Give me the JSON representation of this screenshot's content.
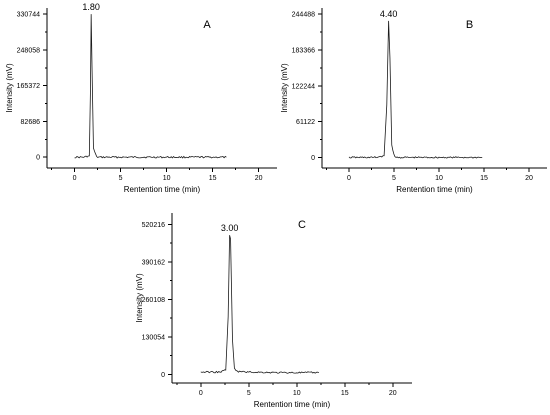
{
  "chart_data": [
    {
      "type": "line",
      "panel_label": "A",
      "peak_label": "1.80",
      "xlabel": "Rentention time (min)",
      "ylabel": "Intensity (mV)",
      "xlim": [
        -3,
        22
      ],
      "ylim": [
        -25000,
        345000
      ],
      "x_ticks": [
        0,
        5,
        10,
        15,
        20
      ],
      "y_ticks": [
        0,
        82686,
        165372,
        248058,
        330744
      ],
      "series": [
        {
          "x": [
            0,
            1.0,
            1.6,
            1.72,
            1.8,
            1.9,
            2.05,
            2.4,
            3,
            5,
            8,
            11,
            14,
            16.5
          ],
          "y": [
            0,
            0,
            3000,
            150000,
            330744,
            200000,
            20000,
            0,
            0,
            0,
            0,
            0,
            0,
            0
          ]
        }
      ],
      "grid": false
    },
    {
      "type": "line",
      "panel_label": "B",
      "peak_label": "4.40",
      "xlabel": "Rentention time (min)",
      "ylabel": "Intensity (mV)",
      "xlim": [
        -3,
        22
      ],
      "ylim": [
        -18000,
        255000
      ],
      "x_ticks": [
        0,
        5,
        10,
        15,
        20
      ],
      "y_ticks": [
        0,
        61122,
        122244,
        183366,
        244488
      ],
      "series": [
        {
          "x": [
            0,
            3,
            3.9,
            4.2,
            4.4,
            4.55,
            4.75,
            5.1,
            7,
            10,
            13,
            14.8
          ],
          "y": [
            0,
            0,
            3000,
            90000,
            233000,
            170000,
            20000,
            0,
            0,
            0,
            0,
            0
          ]
        }
      ],
      "grid": false
    },
    {
      "type": "line",
      "panel_label": "C",
      "peak_label": "3.00",
      "xlabel": "Rentention time (min)",
      "ylabel": "Intensity (mV)",
      "xlim": [
        -3,
        22
      ],
      "ylim": [
        -30000,
        560000
      ],
      "x_ticks": [
        0,
        5,
        10,
        15,
        20
      ],
      "y_ticks": [
        0,
        130054,
        260108,
        390162,
        520216
      ],
      "series": [
        {
          "x": [
            0,
            2.0,
            2.6,
            2.85,
            3.0,
            3.1,
            3.3,
            3.5,
            3.8,
            5,
            8,
            10,
            12.3
          ],
          "y": [
            8000,
            8000,
            15000,
            200000,
            483000,
            470000,
            120000,
            20000,
            10000,
            8000,
            6000,
            6000,
            6000
          ]
        }
      ],
      "grid": false
    }
  ]
}
